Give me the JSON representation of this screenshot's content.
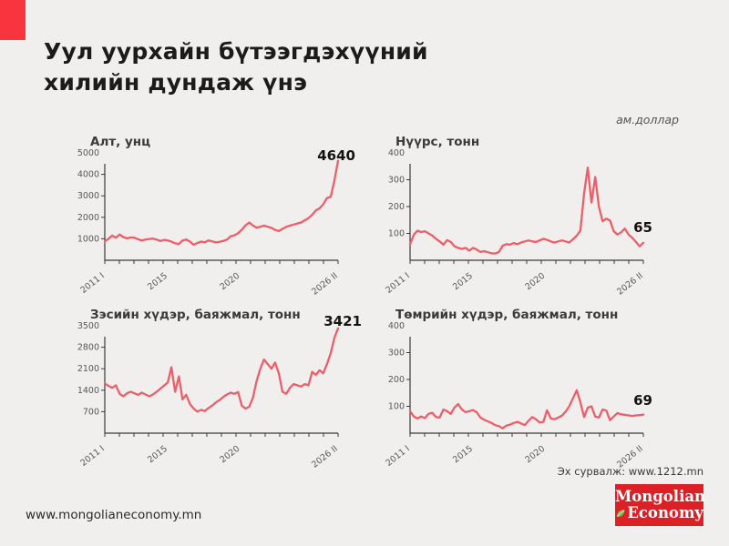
{
  "page": {
    "title_line1": "Уул уурхайн бүтээгдэхүүний",
    "title_line2": "хилийн дундаж үнэ",
    "unit_note": "ам.доллар",
    "source": "Эх сурвалж: www.1212.mn",
    "website": "www.mongolianeconomy.mn",
    "logo": {
      "line1": "Mongolian",
      "line2": "Economy",
      "icon": "leaf-icon"
    },
    "colors": {
      "background": "#f0efed",
      "accent_red": "#f8353e",
      "line": "#ee5d68",
      "logo_red": "#dc2026",
      "leaf_green": "#7ab648",
      "axis": "#3a3a3a"
    }
  },
  "chart_data": [
    {
      "type": "line",
      "title": "Алт, унц",
      "end_value_label": "4640",
      "ylim": [
        0,
        5000
      ],
      "yticks": [
        1000,
        2000,
        3000,
        4000,
        5000
      ],
      "x_axis": {
        "range": "2011 I – 2026 II, semi-annual",
        "tick_labels": [
          "2011 I",
          "2015",
          "2020",
          "2026 II"
        ],
        "tick_label_positions": [
          0,
          0.27,
          0.58,
          1
        ]
      },
      "values": [
        880,
        1000,
        1150,
        1050,
        1200,
        1080,
        1020,
        1060,
        1050,
        980,
        920,
        960,
        990,
        1010,
        960,
        900,
        950,
        920,
        870,
        790,
        760,
        920,
        960,
        870,
        720,
        800,
        870,
        840,
        920,
        880,
        830,
        860,
        900,
        960,
        1120,
        1160,
        1260,
        1420,
        1620,
        1760,
        1620,
        1520,
        1560,
        1610,
        1560,
        1510,
        1410,
        1360,
        1460,
        1560,
        1610,
        1660,
        1710,
        1760,
        1860,
        1960,
        2120,
        2320,
        2420,
        2600,
        2900,
        2950,
        3700,
        4640
      ]
    },
    {
      "type": "line",
      "title": "Нүүрс, тонн",
      "end_value_label": "65",
      "ylim": [
        0,
        400
      ],
      "yticks": [
        100,
        200,
        300,
        400
      ],
      "x_axis": {
        "range": "2011 I – 2026 II, semi-annual",
        "tick_labels": [
          "2011 I",
          "2015",
          "2020",
          "2026 II"
        ],
        "tick_label_positions": [
          0,
          0.27,
          0.58,
          1
        ]
      },
      "values": [
        60,
        95,
        110,
        105,
        108,
        100,
        92,
        80,
        70,
        58,
        75,
        68,
        52,
        46,
        42,
        46,
        36,
        46,
        40,
        31,
        34,
        30,
        26,
        25,
        31,
        54,
        60,
        58,
        64,
        60,
        66,
        70,
        74,
        70,
        68,
        74,
        80,
        76,
        70,
        66,
        70,
        74,
        70,
        66,
        78,
        92,
        110,
        250,
        345,
        215,
        310,
        200,
        145,
        155,
        148,
        108,
        96,
        104,
        118,
        96,
        84,
        68,
        52,
        65
      ]
    },
    {
      "type": "line",
      "title": "Зэсийн хүдэр, баяжмал, тонн",
      "end_value_label": "3421",
      "ylim": [
        0,
        3500
      ],
      "yticks": [
        700,
        1400,
        2100,
        2800,
        3500
      ],
      "x_axis": {
        "range": "2011 I – 2026 II, semi-annual",
        "tick_labels": [
          "2011 I",
          "2015",
          "2020",
          "2026 II"
        ],
        "tick_label_positions": [
          0,
          0.27,
          0.58,
          1
        ]
      },
      "values": [
        1620,
        1540,
        1480,
        1560,
        1280,
        1200,
        1300,
        1350,
        1300,
        1250,
        1320,
        1260,
        1200,
        1260,
        1350,
        1450,
        1550,
        1650,
        2150,
        1350,
        1850,
        1100,
        1250,
        950,
        800,
        700,
        760,
        720,
        820,
        900,
        1000,
        1080,
        1180,
        1260,
        1320,
        1280,
        1340,
        900,
        800,
        860,
        1150,
        1700,
        2100,
        2400,
        2250,
        2100,
        2300,
        1950,
        1350,
        1280,
        1480,
        1600,
        1560,
        1520,
        1600,
        1560,
        2000,
        1900,
        2050,
        1950,
        2250,
        2600,
        3100,
        3421
      ]
    },
    {
      "type": "line",
      "title": "Төмрийн хүдэр, баяжмал, тонн",
      "end_value_label": "69",
      "ylim": [
        0,
        400
      ],
      "yticks": [
        100,
        200,
        300,
        400
      ],
      "x_axis": {
        "range": "2011 I – 2026 II, semi-annual",
        "tick_labels": [
          "2011 I",
          "2015",
          "2020",
          "2026 II"
        ],
        "tick_label_positions": [
          0,
          0.27,
          0.58,
          1
        ]
      },
      "values": [
        82,
        62,
        55,
        62,
        56,
        72,
        76,
        60,
        58,
        88,
        82,
        72,
        96,
        108,
        88,
        78,
        82,
        86,
        78,
        58,
        50,
        44,
        38,
        30,
        26,
        18,
        28,
        32,
        38,
        42,
        36,
        30,
        46,
        60,
        52,
        40,
        42,
        85,
        55,
        52,
        58,
        65,
        80,
        100,
        130,
        160,
        115,
        60,
        95,
        100,
        62,
        58,
        88,
        84,
        48,
        62,
        75,
        70,
        68,
        66,
        64,
        66,
        67,
        69
      ]
    }
  ]
}
